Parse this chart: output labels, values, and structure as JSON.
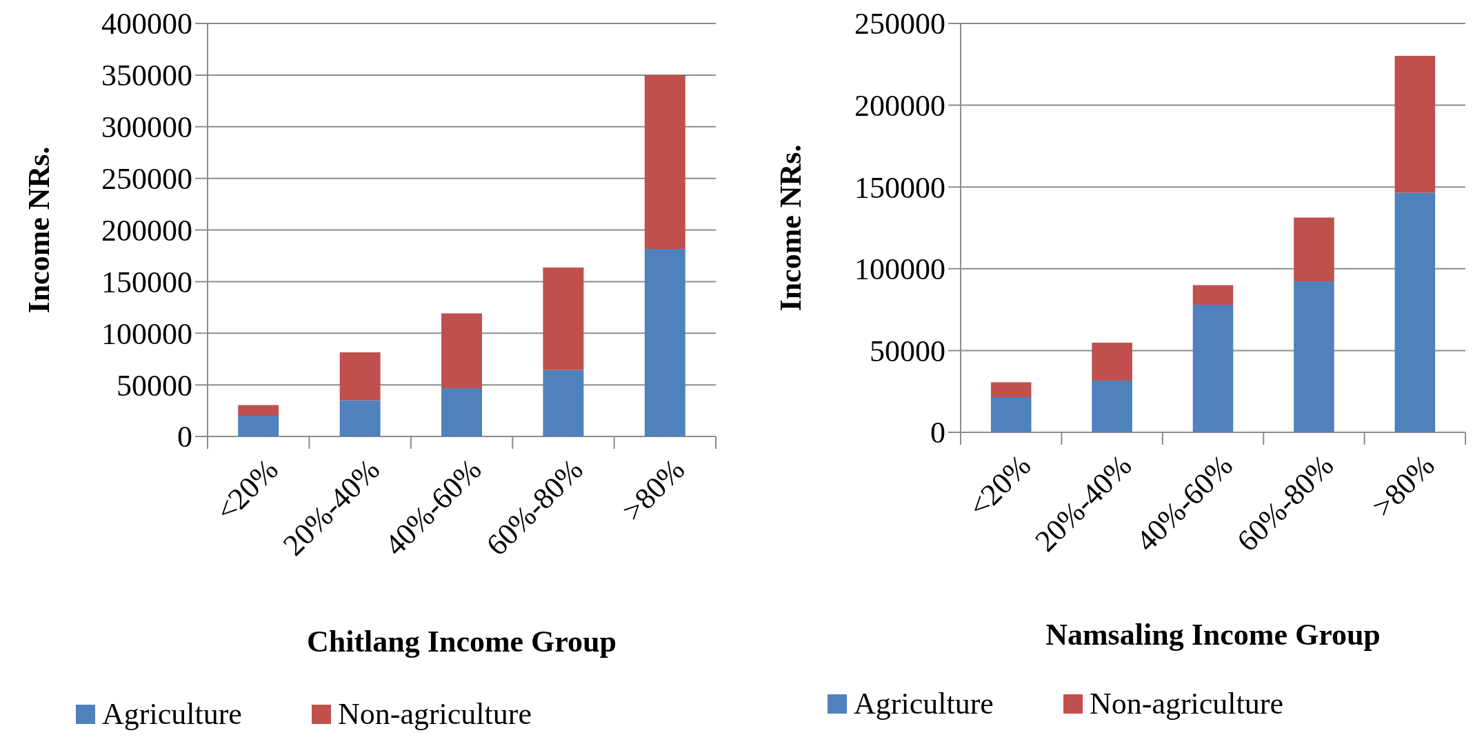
{
  "chart_data": [
    {
      "type": "bar",
      "stacked": true,
      "xlabel": "Chitlang Income Group",
      "ylabel": "Income NRs.",
      "categories": [
        "<20%",
        "20%-40%",
        "40%-60%",
        "60%-80%",
        ">80%"
      ],
      "series": [
        {
          "name": "Agriculture",
          "color": "#4f81bd",
          "values": [
            20000,
            35000,
            46700,
            64400,
            181600
          ]
        },
        {
          "name": "Non-agriculture",
          "color": "#c0504d",
          "values": [
            10400,
            46500,
            72500,
            99200,
            168400
          ]
        }
      ],
      "ylim": [
        0,
        400000
      ],
      "yticks": [
        0,
        50000,
        100000,
        150000,
        200000,
        250000,
        300000,
        350000,
        400000
      ],
      "grid": "y",
      "legend": "bottom"
    },
    {
      "type": "bar",
      "stacked": true,
      "xlabel": "Namsaling Income Group",
      "ylabel": "Income NRs.",
      "categories": [
        "<20%",
        "20%-40%",
        "40%-60%",
        "60%-80%",
        ">80%"
      ],
      "series": [
        {
          "name": "Agriculture",
          "color": "#4f81bd",
          "values": [
            21500,
            31600,
            78000,
            92300,
            146500
          ]
        },
        {
          "name": "Non-agriculture",
          "color": "#c0504d",
          "values": [
            9100,
            23200,
            12000,
            39000,
            83700
          ]
        }
      ],
      "ylim": [
        0,
        250000
      ],
      "yticks": [
        0,
        50000,
        100000,
        150000,
        200000,
        250000
      ],
      "grid": "y",
      "legend": "bottom"
    }
  ]
}
